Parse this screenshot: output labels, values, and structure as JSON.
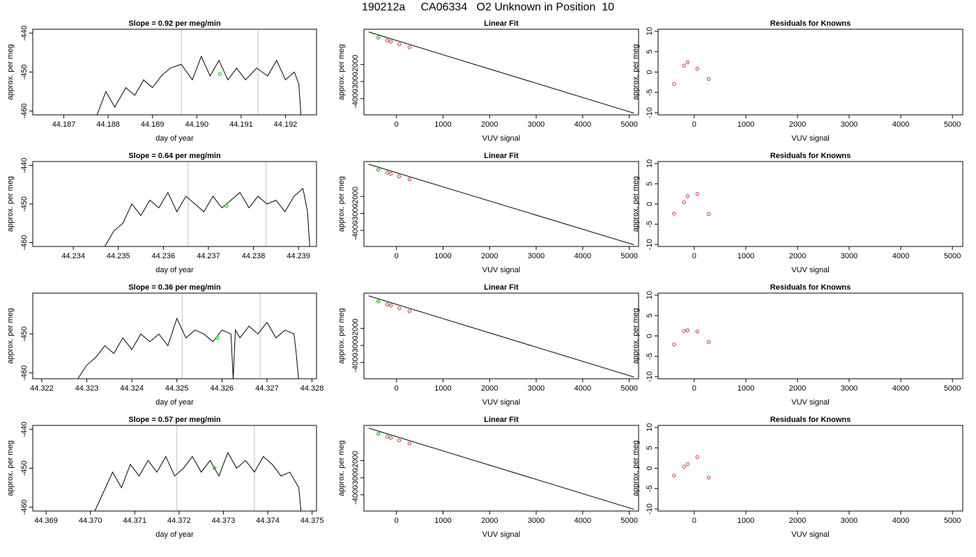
{
  "figure": {
    "title": "190212a     CA06334   O2 Unknown in Position  10"
  },
  "chart_data": [
    {
      "type": "line",
      "title": "Slope =  0.92  per meg/min",
      "xlabel": "day of year",
      "ylabel": "approx. per meg",
      "xlim": [
        44.1863,
        44.1927
      ],
      "ylim": [
        -461,
        -439
      ],
      "xticks": [
        "44.187",
        "44.188",
        "44.189",
        "44.190",
        "44.191",
        "44.192"
      ],
      "yticks": [
        "-440",
        "-450",
        "-460"
      ],
      "series": [
        {
          "x": [
            44.18775,
            44.18795,
            44.18815,
            44.1884,
            44.1886,
            44.1888,
            44.189,
            44.1892,
            44.1894,
            44.18965,
            44.1899,
            44.1901,
            44.1903,
            44.1905,
            44.1907,
            44.1909,
            44.1911,
            44.19135,
            44.1916,
            44.1918,
            44.192,
            44.1922,
            44.1923,
            44.19235
          ],
          "y": [
            -461,
            -455,
            -459,
            -454,
            -456,
            -452,
            -454,
            -451,
            -449,
            -448,
            -452,
            -446,
            -451,
            -447,
            -452,
            -449,
            -452,
            -449,
            -451,
            -447,
            -452,
            -450,
            -453,
            -461
          ]
        }
      ],
      "vlines": [
        44.18965,
        44.19138
      ],
      "marker": {
        "x": 44.19052,
        "y": -450.5,
        "color": "#00dd00"
      }
    },
    {
      "type": "line",
      "title": "Linear Fit",
      "xlabel": "VUV signal",
      "ylabel": "approx. per meg",
      "xlim": [
        -700,
        5200
      ],
      "ylim": [
        -4950,
        60
      ],
      "xticks": [
        "0",
        "1000",
        "2000",
        "3000",
        "4000",
        "5000"
      ],
      "yticks": [
        "-2000",
        "-3000",
        "-4000"
      ],
      "series": [
        {
          "x": [
            -600,
            5100
          ],
          "y": [
            -100,
            -4850
          ]
        }
      ],
      "points": [
        {
          "x": -390,
          "y": -430
        },
        {
          "x": -195,
          "y": -600
        },
        {
          "x": -120,
          "y": -665
        },
        {
          "x": 60,
          "y": -820
        },
        {
          "x": 280,
          "y": -995
        }
      ],
      "marker": {
        "x": -390,
        "y": -430,
        "color": "#00dd00"
      }
    },
    {
      "type": "scatter",
      "title": "Residuals for Knowns",
      "xlabel": "VUV signal",
      "ylabel": "approx. per meg",
      "xlim": [
        -700,
        5200
      ],
      "ylim": [
        -10.5,
        10.5
      ],
      "xticks": [
        "0",
        "1000",
        "2000",
        "3000",
        "4000",
        "5000"
      ],
      "yticks": [
        "10",
        "5",
        "0",
        "-5",
        "-10"
      ],
      "points": [
        {
          "x": -390,
          "y": -2.9
        },
        {
          "x": -200,
          "y": 1.6
        },
        {
          "x": -130,
          "y": 2.4
        },
        {
          "x": 60,
          "y": 0.8
        },
        {
          "x": 280,
          "y": -1.7
        }
      ]
    },
    {
      "type": "line",
      "title": "Slope =  0.64  per meg/min",
      "xlabel": "day of year",
      "ylabel": "approx. per meg",
      "xlim": [
        44.2331,
        44.2394
      ],
      "ylim": [
        -461,
        -439
      ],
      "xticks": [
        "44.234",
        "44.235",
        "44.236",
        "44.237",
        "44.238",
        "44.239"
      ],
      "yticks": [
        "-440",
        "-450",
        "-460"
      ],
      "series": [
        {
          "x": [
            44.2347,
            44.2349,
            44.2351,
            44.2353,
            44.2355,
            44.2357,
            44.2359,
            44.2361,
            44.2363,
            44.2365,
            44.2367,
            44.2369,
            44.2371,
            44.2373,
            44.2375,
            44.2377,
            44.2379,
            44.2381,
            44.2383,
            44.2385,
            44.2387,
            44.2389,
            44.2391,
            44.2392,
            44.23925
          ],
          "y": [
            -461,
            -457,
            -455,
            -450,
            -453,
            -449,
            -451,
            -447,
            -452,
            -448,
            -450,
            -452,
            -448,
            -451,
            -449,
            -447,
            -451,
            -448,
            -450,
            -449,
            -452,
            -448,
            -446,
            -452,
            -461
          ]
        }
      ],
      "vlines": [
        44.23655,
        44.23828
      ],
      "marker": {
        "x": 44.2374,
        "y": -450.5,
        "color": "#00dd00"
      }
    },
    {
      "type": "line",
      "title": "Linear Fit",
      "xlabel": "VUV signal",
      "ylabel": "approx. per meg",
      "xlim": [
        -700,
        5200
      ],
      "ylim": [
        -4950,
        60
      ],
      "xticks": [
        "0",
        "1000",
        "2000",
        "3000",
        "4000",
        "5000"
      ],
      "yticks": [
        "-2000",
        "-3000",
        "-4000"
      ],
      "series": [
        {
          "x": [
            -600,
            5100
          ],
          "y": [
            -100,
            -4850
          ]
        }
      ],
      "points": [
        {
          "x": -390,
          "y": -430
        },
        {
          "x": -195,
          "y": -600
        },
        {
          "x": -120,
          "y": -665
        },
        {
          "x": 60,
          "y": -820
        },
        {
          "x": 280,
          "y": -995
        }
      ],
      "marker": {
        "x": -390,
        "y": -430,
        "color": "#00dd00"
      }
    },
    {
      "type": "scatter",
      "title": "Residuals for Knowns",
      "xlabel": "VUV signal",
      "ylabel": "approx. per meg",
      "xlim": [
        -700,
        5200
      ],
      "ylim": [
        -10.5,
        10.5
      ],
      "xticks": [
        "0",
        "1000",
        "2000",
        "3000",
        "4000",
        "5000"
      ],
      "yticks": [
        "10",
        "5",
        "0",
        "-5",
        "-10"
      ],
      "points": [
        {
          "x": -390,
          "y": -2.4
        },
        {
          "x": -200,
          "y": 0.4
        },
        {
          "x": -130,
          "y": 1.9
        },
        {
          "x": 60,
          "y": 2.5
        },
        {
          "x": 280,
          "y": -2.5
        }
      ]
    },
    {
      "type": "line",
      "title": "Slope =  0.36  per meg/min",
      "xlabel": "day of year",
      "ylabel": "approx. per meg",
      "xlim": [
        44.3218,
        44.3281
      ],
      "ylim": [
        -461.5,
        -439.5
      ],
      "xticks": [
        "44.322",
        "44.323",
        "44.324",
        "44.325",
        "44.326",
        "44.327",
        "44.328"
      ],
      "yticks": [
        "-450",
        "-460"
      ],
      "series": [
        {
          "x": [
            44.3228,
            44.323,
            44.3232,
            44.3234,
            44.3236,
            44.3238,
            44.324,
            44.3242,
            44.3244,
            44.3246,
            44.3248,
            44.325,
            44.3252,
            44.3254,
            44.3256,
            44.3258,
            44.326,
            44.3262,
            44.32625,
            44.3263,
            44.3264,
            44.3266,
            44.3268,
            44.327,
            44.3272,
            44.3274,
            44.3276,
            44.32765,
            44.3277
          ],
          "y": [
            -461.5,
            -458,
            -456,
            -453,
            -455,
            -451,
            -454,
            -450,
            -452,
            -450,
            -453,
            -446,
            -451,
            -449,
            -450,
            -452,
            -449,
            -450,
            -461.5,
            -449,
            -451,
            -448,
            -450,
            -447,
            -451,
            -449,
            -450,
            -455,
            -461.5
          ]
        }
      ],
      "vlines": [
        44.32512,
        44.32685
      ],
      "marker": {
        "x": 44.3259,
        "y": -451,
        "color": "#00dd00"
      }
    },
    {
      "type": "line",
      "title": "Linear Fit",
      "xlabel": "VUV signal",
      "ylabel": "approx. per meg",
      "xlim": [
        -700,
        5200
      ],
      "ylim": [
        -4950,
        60
      ],
      "xticks": [
        "0",
        "1000",
        "2000",
        "3000",
        "4000",
        "5000"
      ],
      "yticks": [
        "-2000",
        "-3000",
        "-4000"
      ],
      "series": [
        {
          "x": [
            -600,
            5100
          ],
          "y": [
            -100,
            -4850
          ]
        }
      ],
      "points": [
        {
          "x": -390,
          "y": -430
        },
        {
          "x": -195,
          "y": -600
        },
        {
          "x": -120,
          "y": -665
        },
        {
          "x": 60,
          "y": -820
        },
        {
          "x": 280,
          "y": -995
        }
      ],
      "marker": {
        "x": -390,
        "y": -430,
        "color": "#00dd00"
      }
    },
    {
      "type": "scatter",
      "title": "Residuals for Knowns",
      "xlabel": "VUV signal",
      "ylabel": "approx. per meg",
      "xlim": [
        -700,
        5200
      ],
      "ylim": [
        -10.5,
        10.5
      ],
      "xticks": [
        "0",
        "1000",
        "2000",
        "3000",
        "4000",
        "5000"
      ],
      "yticks": [
        "10",
        "5",
        "0",
        "-5",
        "-10"
      ],
      "points": [
        {
          "x": -390,
          "y": -2.1
        },
        {
          "x": -200,
          "y": 1.2
        },
        {
          "x": -130,
          "y": 1.4
        },
        {
          "x": 60,
          "y": 1.1
        },
        {
          "x": 280,
          "y": -1.5
        }
      ]
    },
    {
      "type": "line",
      "title": "Slope =  0.57  per meg/min",
      "xlabel": "day of year",
      "ylabel": "approx. per meg",
      "xlim": [
        44.3687,
        44.3751
      ],
      "ylim": [
        -461,
        -439
      ],
      "xticks": [
        "44.369",
        "44.370",
        "44.371",
        "44.372",
        "44.373",
        "44.374",
        "44.375"
      ],
      "yticks": [
        "-440",
        "-450",
        "-460"
      ],
      "series": [
        {
          "x": [
            44.3701,
            44.3703,
            44.3705,
            44.3707,
            44.3709,
            44.3711,
            44.3713,
            44.3715,
            44.3717,
            44.3719,
            44.3721,
            44.3723,
            44.3725,
            44.3727,
            44.3729,
            44.3731,
            44.3733,
            44.3735,
            44.3737,
            44.3739,
            44.3741,
            44.3743,
            44.3745,
            44.3747,
            44.37475
          ],
          "y": [
            -461,
            -456,
            -451,
            -455,
            -449,
            -452,
            -448,
            -451,
            -447,
            -452,
            -450,
            -447,
            -451,
            -448,
            -452,
            -446,
            -450,
            -448,
            -451,
            -447,
            -449,
            -452,
            -451,
            -455,
            -461
          ]
        }
      ],
      "vlines": [
        44.37195,
        44.3737
      ],
      "marker": {
        "x": 44.3728,
        "y": -450,
        "color": "#00dd00"
      }
    },
    {
      "type": "line",
      "title": "Linear Fit",
      "xlabel": "VUV signal",
      "ylabel": "approx. per meg",
      "xlim": [
        -700,
        5200
      ],
      "ylim": [
        -4950,
        60
      ],
      "xticks": [
        "0",
        "1000",
        "2000",
        "3000",
        "4000",
        "5000"
      ],
      "yticks": [
        "-2000",
        "-3000",
        "-4000"
      ],
      "series": [
        {
          "x": [
            -600,
            5100
          ],
          "y": [
            -100,
            -4850
          ]
        }
      ],
      "points": [
        {
          "x": -390,
          "y": -430
        },
        {
          "x": -195,
          "y": -600
        },
        {
          "x": -120,
          "y": -665
        },
        {
          "x": 60,
          "y": -820
        },
        {
          "x": 280,
          "y": -995
        }
      ],
      "marker": {
        "x": -390,
        "y": -430,
        "color": "#00dd00"
      }
    },
    {
      "type": "scatter",
      "title": "Residuals for Knowns",
      "xlabel": "VUV signal",
      "ylabel": "approx. per meg",
      "xlim": [
        -700,
        5200
      ],
      "ylim": [
        -10.5,
        10.5
      ],
      "xticks": [
        "0",
        "1000",
        "2000",
        "3000",
        "4000",
        "5000"
      ],
      "yticks": [
        "10",
        "5",
        "0",
        "-5",
        "-10"
      ],
      "points": [
        {
          "x": -390,
          "y": -1.8
        },
        {
          "x": -200,
          "y": 0.4
        },
        {
          "x": -130,
          "y": 1.0
        },
        {
          "x": 60,
          "y": 2.7
        },
        {
          "x": 280,
          "y": -2.3
        }
      ]
    }
  ],
  "colors": {
    "line": "#000000",
    "point": "#cc2222",
    "marker": "#00dd00",
    "vline": "#cccccc",
    "axis": "#000000"
  }
}
